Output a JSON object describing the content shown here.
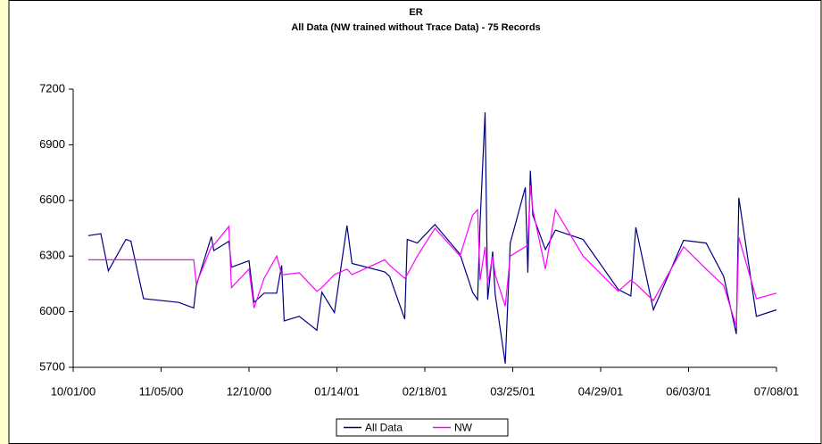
{
  "chart_data": {
    "type": "line",
    "title": "ER",
    "subtitle": "All Data (NW trained without Trace Data) - 75 Records",
    "x": [
      "2000-10-07",
      "2000-10-12",
      "2000-10-15",
      "2000-10-22",
      "2000-10-24",
      "2000-10-29",
      "2000-11-12",
      "2000-11-18",
      "2000-11-19",
      "2000-11-25",
      "2000-11-26",
      "2000-12-02",
      "2000-12-03",
      "2000-12-10",
      "2000-12-12",
      "2000-12-16",
      "2000-12-21",
      "2000-12-23",
      "2000-12-24",
      "2000-12-30",
      "2001-01-06",
      "2001-01-08",
      "2001-01-13",
      "2001-01-18",
      "2001-01-20",
      "2001-02-02",
      "2001-02-04",
      "2001-02-10",
      "2001-02-11",
      "2001-02-15",
      "2001-02-22",
      "2001-03-04",
      "2001-03-09",
      "2001-03-11",
      "2001-03-12",
      "2001-03-14",
      "2001-03-15",
      "2001-03-17",
      "2001-03-18",
      "2001-03-22",
      "2001-03-24",
      "2001-03-30",
      "2001-03-31",
      "2001-04-01",
      "2001-04-02",
      "2001-04-07",
      "2001-04-11",
      "2001-04-22",
      "2001-05-06",
      "2001-05-11",
      "2001-05-13",
      "2001-05-20",
      "2001-06-01",
      "2001-06-10",
      "2001-06-17",
      "2001-06-22",
      "2001-06-23",
      "2001-06-30",
      "2001-07-08"
    ],
    "series": [
      {
        "name": "All Data",
        "color": "#000080",
        "values": [
          6410,
          6420,
          6220,
          6390,
          6380,
          6070,
          6050,
          6020,
          6140,
          6405,
          6330,
          6380,
          6240,
          6275,
          6050,
          6100,
          6100,
          6250,
          5950,
          5975,
          5900,
          6105,
          5995,
          6465,
          6260,
          6215,
          6190,
          5960,
          6390,
          6370,
          6470,
          6310,
          6105,
          6065,
          6480,
          7075,
          6065,
          6325,
          6095,
          5720,
          6370,
          6670,
          6210,
          6760,
          6520,
          6335,
          6440,
          6390,
          6120,
          6085,
          6455,
          6010,
          6385,
          6370,
          6190,
          5880,
          6615,
          5975,
          6010
        ]
      },
      {
        "name": "NW",
        "color": "#ff00ff",
        "values": [
          6280,
          6280,
          6280,
          6280,
          6280,
          6280,
          6280,
          6280,
          6150,
          6350,
          6360,
          6460,
          6130,
          6230,
          6020,
          6180,
          6300,
          6200,
          6200,
          6210,
          6110,
          6130,
          6200,
          6230,
          6200,
          6280,
          6250,
          6180,
          6200,
          6300,
          6450,
          6300,
          6520,
          6550,
          6170,
          6350,
          6150,
          6300,
          6200,
          6030,
          6300,
          6350,
          6360,
          6680,
          6550,
          6230,
          6550,
          6300,
          6110,
          6170,
          6150,
          6060,
          6350,
          6230,
          6140,
          5920,
          6400,
          6070,
          6100
        ]
      }
    ],
    "xlim": [
      "2000-10-01",
      "2001-07-08"
    ],
    "xticks": [
      {
        "value": "2000-10-01",
        "label": "10/01/00"
      },
      {
        "value": "2000-11-05",
        "label": "11/05/00"
      },
      {
        "value": "2000-12-10",
        "label": "12/10/00"
      },
      {
        "value": "2001-01-14",
        "label": "01/14/01"
      },
      {
        "value": "2001-02-18",
        "label": "02/18/01"
      },
      {
        "value": "2001-03-25",
        "label": "03/25/01"
      },
      {
        "value": "2001-04-29",
        "label": "04/29/01"
      },
      {
        "value": "2001-06-03",
        "label": "06/03/01"
      },
      {
        "value": "2001-07-08",
        "label": "07/08/01"
      }
    ],
    "ylim": [
      5700,
      7200
    ],
    "yticks": [
      5700,
      6000,
      6300,
      6600,
      6900,
      7200
    ],
    "grid": false,
    "legend": "bottom"
  }
}
